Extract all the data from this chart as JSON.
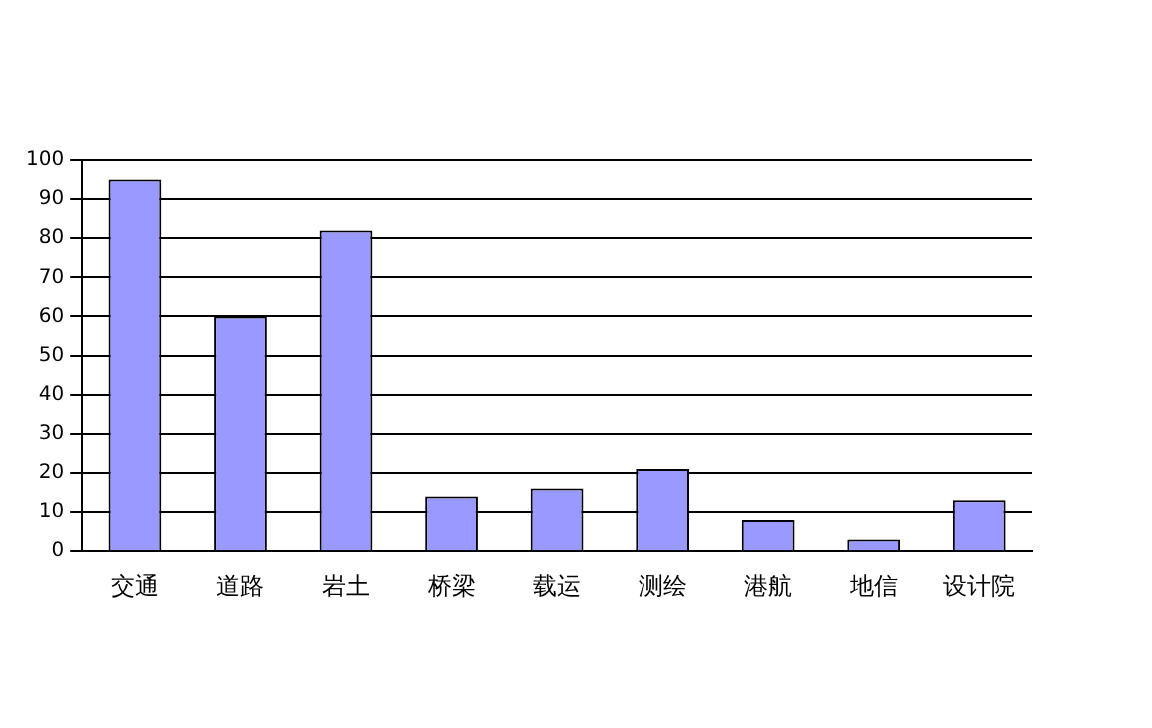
{
  "chart_data": {
    "type": "bar",
    "categories": [
      "交通",
      "道路",
      "岩土",
      "桥梁",
      "载运",
      "测绘",
      "港航",
      "地信",
      "设计院"
    ],
    "values": [
      95,
      60,
      82,
      14,
      16,
      21,
      8,
      3,
      13
    ],
    "color": "#9999ff",
    "ylim": [
      0,
      100
    ],
    "yticks": [
      0,
      10,
      20,
      30,
      40,
      50,
      60,
      70,
      80,
      90,
      100
    ],
    "grid": "y",
    "legend": false
  }
}
